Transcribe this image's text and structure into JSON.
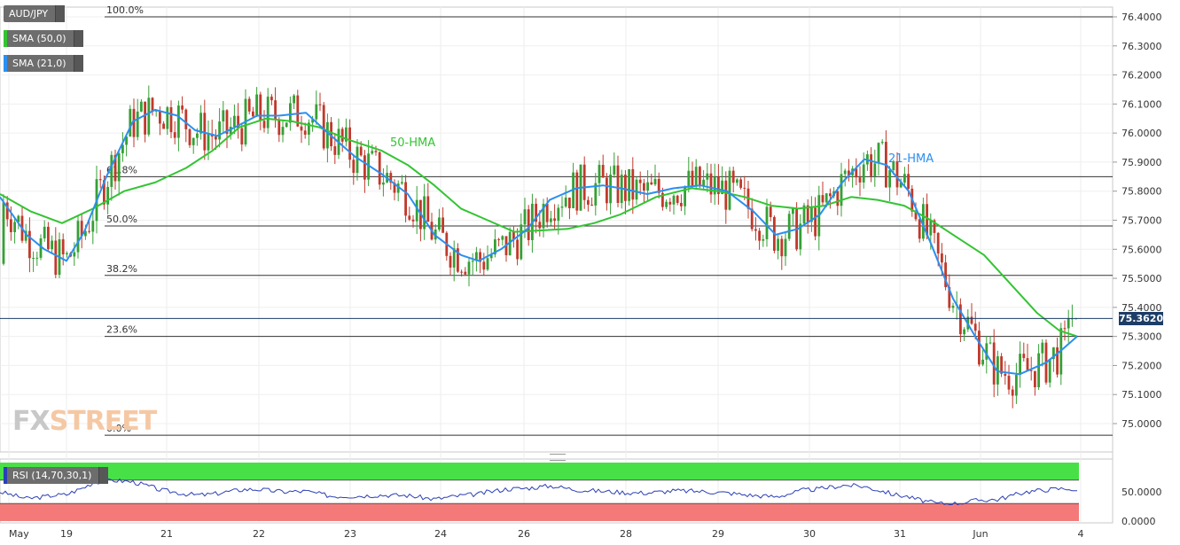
{
  "legend": {
    "symbol": "AUD/JPY",
    "sma50": "SMA (50,0)",
    "sma21": "SMA (21,0)",
    "rsi": "RSI (14,70,30,1)"
  },
  "colors": {
    "up": "#35a035",
    "down": "#c0392b",
    "hma50": "#33c433",
    "hma21": "#2b8ff0",
    "rsi_line": "#2a3fb5",
    "rsi_over": "#47e147",
    "rsi_under": "#f47a7a"
  },
  "current_price": "75.3620",
  "watermark": {
    "fx": "FX",
    "street": "STREET"
  },
  "chart_data": {
    "type": "candlestick",
    "ylim": [
      74.92,
      76.44
    ],
    "y_ticks": [
      "76.4000",
      "76.3000",
      "76.2000",
      "76.1000",
      "76.0000",
      "75.9000",
      "75.8000",
      "75.7000",
      "75.6000",
      "75.5000",
      "75.4000",
      "75.3000",
      "75.2000",
      "75.1000",
      "75.0000"
    ],
    "x_ticks": [
      "May",
      "19",
      "21",
      "22",
      "23",
      "24",
      "26",
      "28",
      "29",
      "30",
      "31",
      "Jun",
      "4"
    ],
    "fibonacci": [
      {
        "label": "100.0%",
        "price": 76.4
      },
      {
        "label": "61.8%",
        "price": 75.85
      },
      {
        "label": "50.0%",
        "price": 75.68
      },
      {
        "label": "38.2%",
        "price": 75.51
      },
      {
        "label": "23.6%",
        "price": 75.3
      },
      {
        "label": "0.0%",
        "price": 74.96
      }
    ],
    "annotations": {
      "hma50": "50-HMA",
      "hma21": "21-HMA"
    },
    "hma50": [
      [
        0,
        75.79
      ],
      [
        35,
        75.73
      ],
      [
        70,
        75.69
      ],
      [
        105,
        75.74
      ],
      [
        140,
        75.8
      ],
      [
        175,
        75.83
      ],
      [
        210,
        75.88
      ],
      [
        240,
        75.94
      ],
      [
        270,
        76.02
      ],
      [
        300,
        76.05
      ],
      [
        330,
        76.04
      ],
      [
        360,
        76.02
      ],
      [
        390,
        75.98
      ],
      [
        430,
        75.94
      ],
      [
        460,
        75.89
      ],
      [
        490,
        75.82
      ],
      [
        520,
        75.74
      ],
      [
        550,
        75.7
      ],
      [
        580,
        75.66
      ],
      [
        610,
        75.665
      ],
      [
        640,
        75.67
      ],
      [
        670,
        75.69
      ],
      [
        700,
        75.72
      ],
      [
        740,
        75.78
      ],
      [
        780,
        75.81
      ],
      [
        810,
        75.8
      ],
      [
        840,
        75.78
      ],
      [
        870,
        75.75
      ],
      [
        900,
        75.74
      ],
      [
        930,
        75.75
      ],
      [
        960,
        75.78
      ],
      [
        990,
        75.77
      ],
      [
        1020,
        75.75
      ],
      [
        1050,
        75.7
      ],
      [
        1080,
        75.64
      ],
      [
        1110,
        75.58
      ],
      [
        1140,
        75.48
      ],
      [
        1170,
        75.38
      ],
      [
        1195,
        75.32
      ],
      [
        1215,
        75.3
      ]
    ],
    "hma21": [
      [
        0,
        75.78
      ],
      [
        30,
        75.65
      ],
      [
        50,
        75.6
      ],
      [
        75,
        75.56
      ],
      [
        95,
        75.66
      ],
      [
        120,
        75.85
      ],
      [
        150,
        76.04
      ],
      [
        175,
        76.08
      ],
      [
        200,
        76.06
      ],
      [
        220,
        76.01
      ],
      [
        245,
        75.99
      ],
      [
        265,
        76.02
      ],
      [
        290,
        76.06
      ],
      [
        315,
        76.06
      ],
      [
        345,
        76.07
      ],
      [
        370,
        76.0
      ],
      [
        400,
        75.92
      ],
      [
        430,
        75.86
      ],
      [
        460,
        75.79
      ],
      [
        490,
        75.65
      ],
      [
        520,
        75.58
      ],
      [
        540,
        75.56
      ],
      [
        565,
        75.6
      ],
      [
        595,
        75.67
      ],
      [
        620,
        75.77
      ],
      [
        650,
        75.81
      ],
      [
        680,
        75.82
      ],
      [
        700,
        75.81
      ],
      [
        730,
        75.79
      ],
      [
        760,
        75.81
      ],
      [
        790,
        75.82
      ],
      [
        820,
        75.8
      ],
      [
        850,
        75.73
      ],
      [
        875,
        75.65
      ],
      [
        900,
        75.67
      ],
      [
        925,
        75.72
      ],
      [
        950,
        75.83
      ],
      [
        975,
        75.91
      ],
      [
        1000,
        75.89
      ],
      [
        1025,
        75.8
      ],
      [
        1050,
        75.62
      ],
      [
        1075,
        75.43
      ],
      [
        1100,
        75.3
      ],
      [
        1125,
        75.18
      ],
      [
        1150,
        75.17
      ],
      [
        1180,
        75.21
      ],
      [
        1200,
        75.26
      ],
      [
        1215,
        75.3
      ]
    ],
    "rsi": {
      "ylim": [
        0,
        100
      ],
      "y_ticks": [
        "50.0000",
        "0.0000"
      ],
      "overbought": 70,
      "oversold": 30,
      "end_value": 52
    }
  }
}
